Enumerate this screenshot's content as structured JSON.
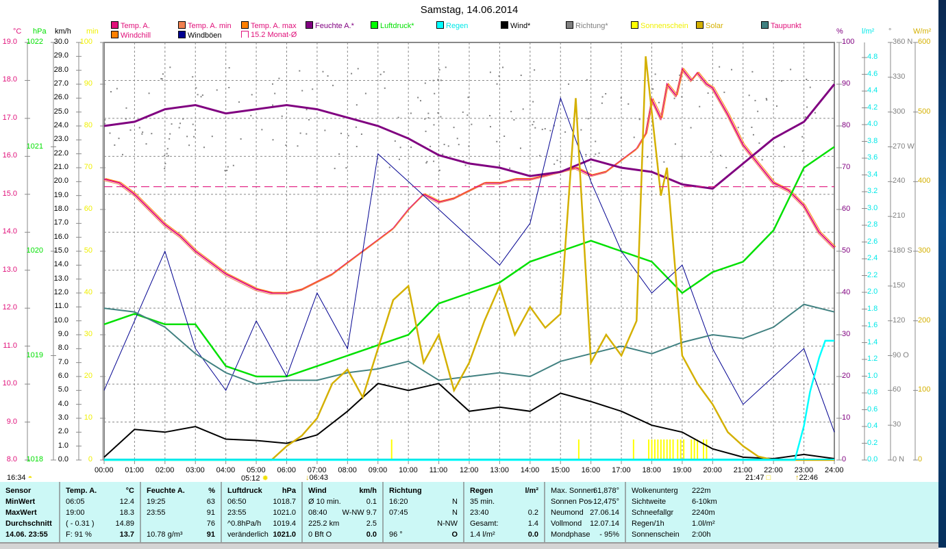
{
  "title": "Samstag, 14.06.2014",
  "legend": [
    {
      "label": "Temp. A.",
      "color": "#e0107a",
      "text_color": "#e0107a"
    },
    {
      "label": "Temp. A. min",
      "color": "#f08050",
      "text_color": "#e0107a"
    },
    {
      "label": "Temp. A. max",
      "color": "#ff8000",
      "text_color": "#e0107a"
    },
    {
      "label": "Windchill",
      "color": "#ff8000",
      "text_color": "#e0107a"
    },
    {
      "label": "Windböen",
      "color": "#000090",
      "text_color": "#000000"
    },
    {
      "label": "15.2 Monat-Ø",
      "color": "#e0107a",
      "text_color": "#e0107a"
    },
    {
      "label": "Feuchte A.*",
      "color": "#800080",
      "text_color": "#800080"
    },
    {
      "label": "Luftdruck*",
      "color": "#00ff00",
      "text_color": "#00e000"
    },
    {
      "label": "Regen",
      "color": "#00ffff",
      "text_color": "#00e8e8"
    },
    {
      "label": "Wind*",
      "color": "#000000",
      "text_color": "#000000"
    },
    {
      "label": "Richtung*",
      "color": "#808080",
      "text_color": "#808080"
    },
    {
      "label": "Sonnenschein",
      "color": "#ffff00",
      "text_color": "#f0f000"
    },
    {
      "label": "Solar",
      "color": "#d4b000",
      "text_color": "#d4b000"
    },
    {
      "label": "Taupunkt",
      "color": "#408080",
      "text_color": "#e0107a"
    }
  ],
  "units": {
    "temp": "°C",
    "pressure": "hPa",
    "wind": "km/h",
    "sun": "min",
    "humidity": "%",
    "rain": "l/m²",
    "direction": "°",
    "solar": "W/m²"
  },
  "axes": {
    "temp": [
      "19.0",
      "18.0",
      "17.0",
      "16.0",
      "15.0",
      "14.0",
      "13.0",
      "12.0",
      "11.0",
      "10.0",
      "9.0",
      "8.0"
    ],
    "pressure": [
      "1022",
      "1021",
      "1020",
      "1019",
      "1018"
    ],
    "wind": [
      "30.0",
      "29.0",
      "28.0",
      "27.0",
      "26.0",
      "25.0",
      "24.0",
      "23.0",
      "22.0",
      "21.0",
      "20.0",
      "19.0",
      "18.0",
      "17.0",
      "16.0",
      "15.0",
      "14.0",
      "13.0",
      "12.0",
      "11.0",
      "10.0",
      "9.0",
      "8.0",
      "7.0",
      "6.0",
      "5.0",
      "4.0",
      "3.0",
      "2.0",
      "1.0",
      "0.0"
    ],
    "sun": [
      "100",
      "90",
      "80",
      "70",
      "60",
      "50",
      "40",
      "30",
      "20",
      "10",
      "0"
    ],
    "humidity": [
      "100",
      "90",
      "80",
      "70",
      "60",
      "50",
      "40",
      "30",
      "20",
      "10",
      "0"
    ],
    "rain": [
      "4.8",
      "4.6",
      "4.4",
      "4.2",
      "4.0",
      "3.8",
      "3.6",
      "3.4",
      "3.2",
      "3.0",
      "2.8",
      "2.6",
      "2.4",
      "2.2",
      "2.0",
      "1.8",
      "1.6",
      "1.4",
      "1.2",
      "1.0",
      "0.8",
      "0.6",
      "0.4",
      "0.2",
      "0.0"
    ],
    "direction": [
      "360 N",
      "330",
      "300",
      "270 W",
      "240",
      "210",
      "180 S",
      "150",
      "120",
      "90  O",
      "60",
      "30",
      "0   N"
    ],
    "solar": [
      "600",
      "500",
      "400",
      "300",
      "200",
      "100",
      "0"
    ],
    "time": [
      "00:00",
      "01:00",
      "02:00",
      "03:00",
      "04:00",
      "05:00",
      "06:00",
      "07:00",
      "08:00",
      "09:00",
      "10:00",
      "11:00",
      "12:00",
      "13:00",
      "14:00",
      "15:00",
      "16:00",
      "17:00",
      "18:00",
      "19:00",
      "20:00",
      "21:00",
      "22:00",
      "23:00",
      "24:00"
    ]
  },
  "astro_labels": {
    "moonset": "16:34",
    "sunrise": "05:12",
    "rain_start": "06:43",
    "sunset": "21:47",
    "moonrise": "22:46"
  },
  "chart_data": {
    "type": "line",
    "title": "Samstag, 14.06.2014",
    "x_unit": "hour",
    "xlim": [
      0,
      24
    ],
    "grid": true,
    "legend_position": "top",
    "series": [
      {
        "name": "Temp. A.",
        "axis": "temp",
        "ylim": [
          8,
          19
        ],
        "x": [
          0,
          0.5,
          1,
          1.5,
          2,
          2.5,
          3,
          3.5,
          4,
          4.5,
          5,
          5.5,
          6,
          6.5,
          7,
          7.5,
          8,
          8.5,
          9,
          9.5,
          10,
          10.5,
          11,
          11.5,
          12,
          12.5,
          13,
          13.5,
          14,
          14.5,
          15,
          15.5,
          16,
          16.5,
          17,
          17.5,
          17.8,
          18,
          18.3,
          18.5,
          18.8,
          19,
          19.3,
          19.5,
          19.8,
          20,
          20.5,
          21,
          21.5,
          22,
          22.5,
          23,
          23.5,
          24
        ],
        "y": [
          15.4,
          15.3,
          15.0,
          14.6,
          14.2,
          13.9,
          13.5,
          13.2,
          12.9,
          12.7,
          12.5,
          12.4,
          12.4,
          12.5,
          12.7,
          12.9,
          13.2,
          13.5,
          13.8,
          14.1,
          14.6,
          15.0,
          14.8,
          14.9,
          15.1,
          15.3,
          15.3,
          15.4,
          15.4,
          15.5,
          15.6,
          15.7,
          15.5,
          15.6,
          15.9,
          16.2,
          16.6,
          17.5,
          17.0,
          17.9,
          17.6,
          18.3,
          18.0,
          18.2,
          17.9,
          17.8,
          17.1,
          16.3,
          15.8,
          15.3,
          15.1,
          14.7,
          14.0,
          13.6
        ]
      },
      {
        "name": "Feuchte A.*",
        "axis": "humidity",
        "ylim": [
          0,
          100
        ],
        "x": [
          0,
          1,
          2,
          3,
          4,
          5,
          6,
          7,
          8,
          9,
          10,
          11,
          12,
          13,
          14,
          15,
          16,
          17,
          18,
          19,
          20,
          21,
          22,
          23,
          24
        ],
        "y": [
          80,
          81,
          84,
          85,
          83,
          84,
          85,
          84,
          82,
          80,
          77,
          73,
          71,
          70,
          68,
          69,
          72,
          70,
          69,
          66,
          65,
          71,
          77,
          81,
          90
        ]
      },
      {
        "name": "Luftdruck*",
        "axis": "pressure",
        "ylim": [
          1018,
          1022
        ],
        "x": [
          0,
          1,
          2,
          3,
          4,
          5,
          6,
          7,
          8,
          9,
          10,
          11,
          12,
          13,
          14,
          15,
          16,
          17,
          18,
          19,
          20,
          21,
          22,
          23,
          24
        ],
        "y": [
          1019.3,
          1019.4,
          1019.3,
          1019.3,
          1018.9,
          1018.8,
          1018.8,
          1018.9,
          1019.0,
          1019.1,
          1019.2,
          1019.5,
          1019.6,
          1019.7,
          1019.9,
          1020.0,
          1020.1,
          1020.0,
          1019.9,
          1019.6,
          1019.8,
          1019.9,
          1020.2,
          1020.8,
          1021.0
        ]
      },
      {
        "name": "Wind*",
        "axis": "wind",
        "ylim": [
          0,
          30
        ],
        "x": [
          0,
          1,
          2,
          3,
          4,
          5,
          6,
          7,
          8,
          9,
          10,
          11,
          12,
          13,
          14,
          15,
          16,
          17,
          18,
          19,
          20,
          21,
          22,
          23,
          24
        ],
        "y": [
          0.2,
          2.2,
          2.0,
          2.4,
          1.5,
          1.4,
          1.2,
          1.8,
          3.5,
          5.5,
          5.0,
          5.5,
          3.5,
          3.8,
          3.5,
          4.8,
          4.2,
          3.5,
          2.5,
          2.0,
          0.8,
          0.2,
          0.1,
          0.4,
          0.1
        ]
      },
      {
        "name": "Windböen",
        "axis": "wind",
        "ylim": [
          0,
          30
        ],
        "x": [
          0,
          1,
          2,
          3,
          4,
          5,
          6,
          7,
          8,
          9,
          10,
          11,
          12,
          13,
          14,
          15,
          16,
          17,
          18,
          19,
          20,
          21,
          22,
          23,
          24
        ],
        "y": [
          5,
          10,
          15,
          8,
          5,
          10,
          6,
          12,
          8,
          22,
          20,
          18,
          16,
          14,
          17,
          26,
          20,
          15,
          12,
          14,
          8,
          4,
          6,
          8,
          2
        ]
      },
      {
        "name": "Taupunkt",
        "axis": "temp",
        "ylim": [
          8,
          19
        ],
        "x": [
          0,
          1,
          2,
          3,
          4,
          5,
          6,
          7,
          8,
          9,
          10,
          11,
          12,
          13,
          14,
          15,
          16,
          17,
          18,
          19,
          20,
          21,
          22,
          23,
          24
        ],
        "y": [
          12.0,
          11.9,
          11.5,
          10.8,
          10.3,
          10.0,
          10.1,
          10.1,
          10.3,
          10.4,
          10.6,
          10.1,
          10.2,
          10.3,
          10.2,
          10.6,
          10.8,
          11.0,
          10.8,
          11.1,
          11.3,
          11.2,
          11.5,
          12.1,
          11.9
        ]
      },
      {
        "name": "Solar",
        "axis": "solar",
        "ylim": [
          0,
          600
        ],
        "x": [
          0,
          5.5,
          6,
          6.5,
          7,
          7.5,
          8,
          8.5,
          9,
          9.5,
          10,
          10.5,
          11,
          11.5,
          12,
          12.5,
          13,
          13.5,
          14,
          14.5,
          15,
          15.5,
          16,
          16.5,
          17,
          17.5,
          17.8,
          18,
          18.3,
          18.5,
          19,
          19.5,
          20,
          20.5,
          21,
          21.5,
          22,
          24
        ],
        "y": [
          0,
          0,
          20,
          35,
          60,
          110,
          130,
          90,
          160,
          230,
          250,
          140,
          180,
          100,
          140,
          200,
          250,
          180,
          220,
          190,
          210,
          520,
          140,
          180,
          150,
          200,
          580,
          500,
          380,
          420,
          150,
          110,
          80,
          40,
          20,
          5,
          0,
          0
        ]
      },
      {
        "name": "Regen",
        "axis": "rain",
        "ylim": [
          0,
          4.9
        ],
        "x": [
          0,
          22.7,
          23,
          23.2,
          23.5,
          23.7,
          24
        ],
        "y": [
          0,
          0,
          0.4,
          0.8,
          1.2,
          1.4,
          1.4
        ]
      },
      {
        "name": "15.2 Monat-Ø",
        "axis": "temp",
        "ylim": [
          8,
          19
        ],
        "x": [
          0,
          24
        ],
        "y": [
          15.2,
          15.2
        ]
      }
    ],
    "sunshine_hours": [
      9.45,
      15.6,
      17.4,
      17.9,
      18.0,
      18.1,
      18.2,
      18.3,
      18.4,
      18.5,
      18.6,
      18.7,
      18.85,
      18.95,
      19.05,
      19.3,
      19.4,
      19.5,
      19.7,
      19.8
    ]
  },
  "panel": {
    "sensor": {
      "header": "Sensor",
      "rows": [
        "MinWert",
        "MaxWert",
        "Durchschnitt",
        "14.06. 23:55"
      ]
    },
    "temp": {
      "header": "Temp. A.",
      "unit": "°C",
      "rows": [
        [
          "06:05",
          "12.4"
        ],
        [
          "19:00",
          "18.3"
        ],
        [
          "( - 0.31 )",
          "14.89"
        ],
        [
          "F: 91 %",
          "13.7"
        ]
      ]
    },
    "humidity": {
      "header": "Feuchte A.",
      "unit": "%",
      "rows": [
        [
          "19:25",
          "63"
        ],
        [
          "23:55",
          "91"
        ],
        [
          "",
          "76"
        ],
        [
          "10.78 g/m³",
          "91"
        ]
      ]
    },
    "pressure": {
      "header": "Luftdruck",
      "unit": "hPa",
      "rows": [
        [
          "06:50",
          "1018.7"
        ],
        [
          "23:55",
          "1021.0"
        ],
        [
          "^0.8hPa/h",
          "1019.4"
        ],
        [
          "veränderlich",
          "1021.0"
        ]
      ]
    },
    "wind": {
      "header": "Wind",
      "unit": "km/h",
      "rows": [
        [
          "Ø 10 min.",
          "0.1"
        ],
        [
          "08:40",
          "W-NW 9.7"
        ],
        [
          "225.2 km",
          "2.5"
        ],
        [
          "0 Bft O",
          "0.0"
        ]
      ]
    },
    "direction": {
      "header": "Richtung",
      "unit": "",
      "rows": [
        [
          "16:20",
          "N"
        ],
        [
          "07:45",
          "N"
        ],
        [
          "",
          "N-NW"
        ],
        [
          "96 °",
          "O"
        ]
      ]
    },
    "rain": {
      "header": "Regen",
      "unit": "l/m²",
      "rows": [
        [
          "35 min.",
          ""
        ],
        [
          "23:40",
          "0.2"
        ],
        [
          "Gesamt:",
          "1.4"
        ],
        [
          "1.4 l/m²",
          "0.0"
        ]
      ]
    },
    "astro": {
      "rows": [
        [
          "Max. Sonnen",
          "61,878°"
        ],
        [
          "Sonnen Pos",
          "-12,475°"
        ],
        [
          "Neumond",
          "27.06.14"
        ],
        [
          "Vollmond",
          "12.07.14"
        ],
        [
          "Mondphase",
          "- 95%"
        ]
      ]
    },
    "misc": {
      "rows": [
        [
          "Wolkenunterg",
          "222m"
        ],
        [
          "Sichtweite",
          "6-10km"
        ],
        [
          "Schneefallgr",
          "2240m"
        ],
        [
          "Regen/1h",
          "1.0l/m²"
        ],
        [
          "Sonnenschein",
          "2:00h"
        ]
      ]
    }
  }
}
